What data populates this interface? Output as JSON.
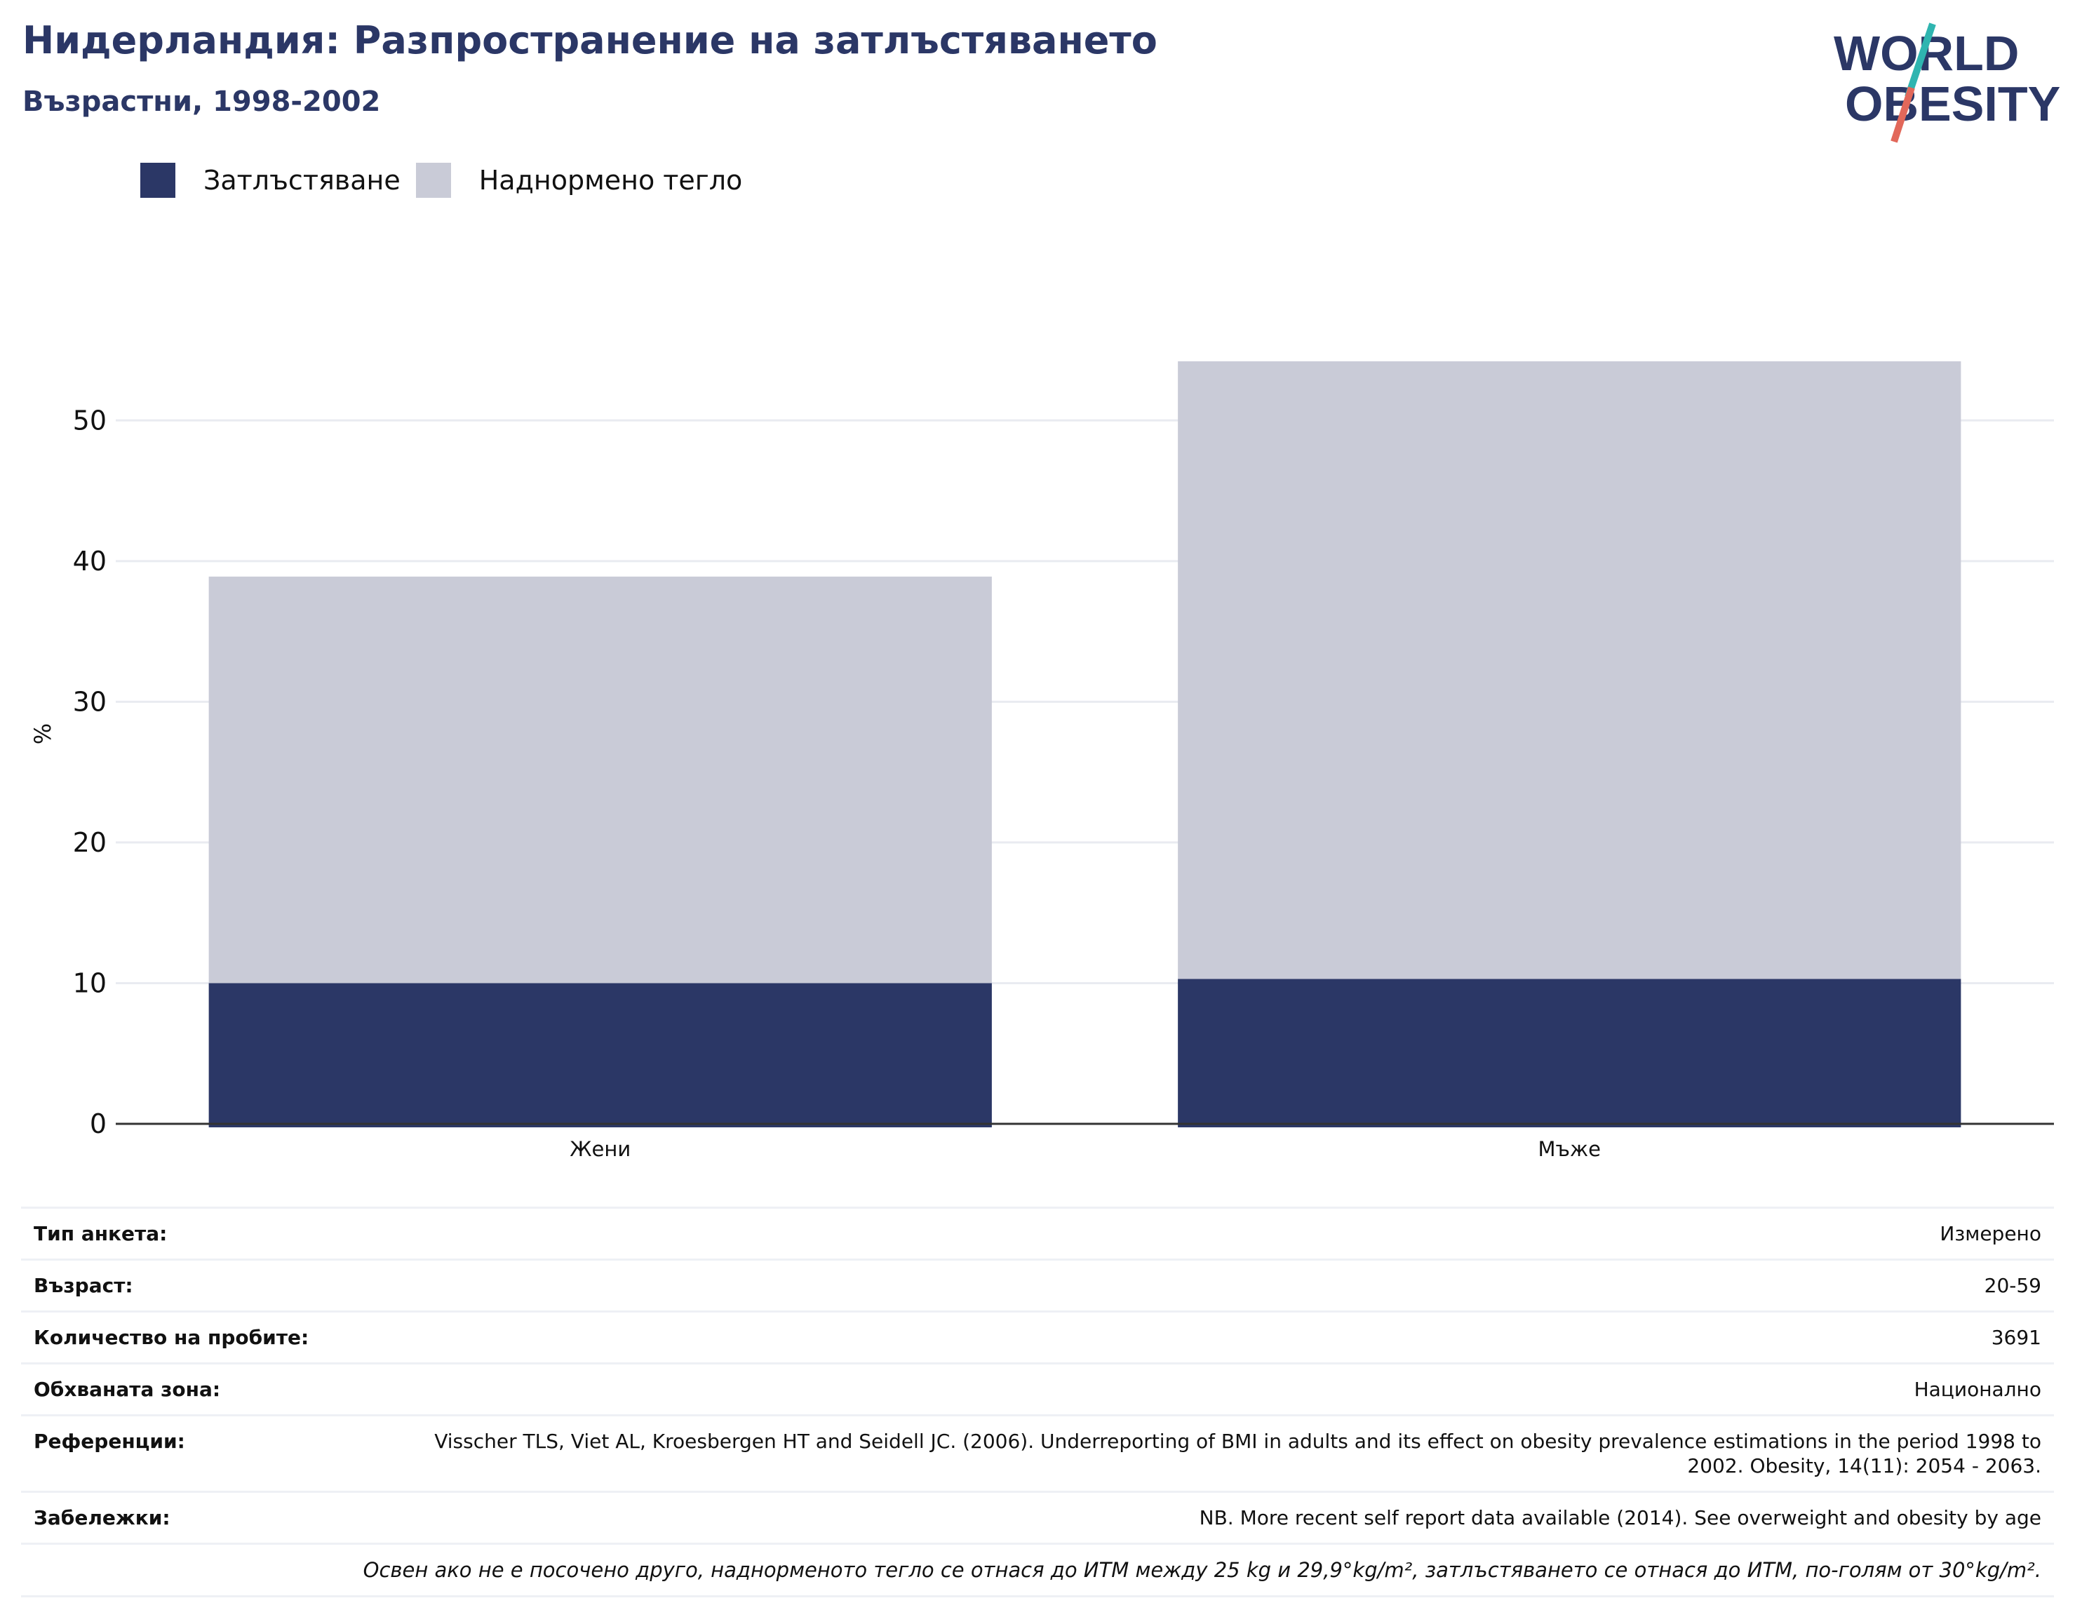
{
  "header": {
    "title": "Нидерландия: Разпространение на затлъстяването",
    "subtitle": "Възрастни, 1998-2002"
  },
  "logo": {
    "line1": "WORLD",
    "line2": "OBESITY",
    "colors": {
      "text": "#2b3766",
      "slash_top": "#2fb5b0",
      "slash_bottom": "#e2685a"
    }
  },
  "legend": {
    "items": [
      {
        "label": "Затлъстяване",
        "color": "#2b3766"
      },
      {
        "label": "Наднормено тегло",
        "color": "#c9cbd7"
      }
    ]
  },
  "chart_data": {
    "type": "bar",
    "stacked": true,
    "categories": [
      "Жени",
      "Мъже"
    ],
    "series": [
      {
        "name": "Затлъстяване",
        "values": [
          10.0,
          10.3
        ],
        "color": "#2b3766"
      },
      {
        "name": "Наднормено тегло",
        "values": [
          28.9,
          43.9
        ],
        "color": "#c9cbd7"
      }
    ],
    "ylabel": "%",
    "xlabel": "",
    "ylim": [
      0,
      56
    ],
    "yticks": [
      0,
      10,
      20,
      30,
      40,
      50
    ],
    "grid": true,
    "legend_position": "top-left"
  },
  "info": {
    "rows": [
      {
        "key": "Тип анкета:",
        "value": "Измерено"
      },
      {
        "key": "Възраст:",
        "value": "20-59"
      },
      {
        "key": "Количество на пробите:",
        "value": "3691"
      },
      {
        "key": "Обхваната зона:",
        "value": "Национално"
      },
      {
        "key": "Референции:",
        "value": "Visscher TLS, Viet AL, Kroesbergen HT and Seidell JC. (2006). Underreporting of BMI in adults and its effect on obesity prevalence estimations in the period 1998 to 2002. Obesity, 14(11): 2054 - 2063."
      },
      {
        "key": "Забележки:",
        "value": "NB. More recent self report data available (2014). See overweight and obesity by age"
      }
    ],
    "footnote": "Освен ако не е посочено друго, наднорменото тегло се отнася до ИТМ между 25 kg и 29,9°kg/m², затлъстяването се отнася до ИТМ, по-голям от 30°kg/m²."
  }
}
